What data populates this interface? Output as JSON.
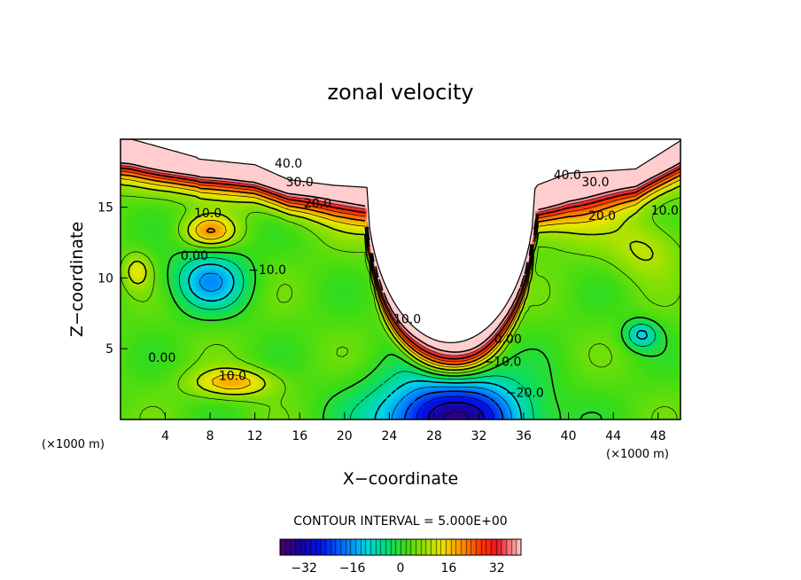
{
  "chart_data": {
    "type": "heatmap",
    "title": "zonal velocity",
    "xlabel": "X−coordinate",
    "ylabel": "Z−coordinate",
    "x_unit": "(×1000 m)",
    "y_unit": "(×1000 m)",
    "xlim": [
      0,
      50
    ],
    "ylim": [
      0,
      19.8
    ],
    "x_ticks": [
      4,
      8,
      12,
      16,
      20,
      24,
      28,
      32,
      36,
      40,
      44,
      48
    ],
    "y_ticks": [
      5,
      10,
      15
    ],
    "contour_interval_text": "CONTOUR INTERVAL = 5.000E+00",
    "contour_interval": 5,
    "colorbar": {
      "range": [
        -40,
        40
      ],
      "ticks": [
        -32,
        -16,
        0,
        16,
        32
      ],
      "tick_labels": [
        "−32",
        "−16",
        "0",
        "16",
        "32"
      ]
    },
    "contour_labels": [
      {
        "text": "40.0",
        "x": 15.0,
        "z": 18.1
      },
      {
        "text": "30.0",
        "x": 16.0,
        "z": 16.8
      },
      {
        "text": "20.0",
        "x": 17.6,
        "z": 15.3
      },
      {
        "text": "10.0",
        "x": 7.8,
        "z": 14.6
      },
      {
        "text": "0.00",
        "x": 6.6,
        "z": 11.6
      },
      {
        "text": "−10.0",
        "x": 13.1,
        "z": 10.6
      },
      {
        "text": "10.0",
        "x": 25.6,
        "z": 7.1
      },
      {
        "text": "0.00",
        "x": 34.6,
        "z": 5.7
      },
      {
        "text": "−10.0",
        "x": 34.1,
        "z": 4.1
      },
      {
        "text": "−20.0",
        "x": 36.1,
        "z": 1.9
      },
      {
        "text": "0.00",
        "x": 3.7,
        "z": 4.4
      },
      {
        "text": "10.0",
        "x": 10.0,
        "z": 3.1
      },
      {
        "text": "40.0",
        "x": 39.9,
        "z": 17.3
      },
      {
        "text": "30.0",
        "x": 42.4,
        "z": 16.8
      },
      {
        "text": "20.0",
        "x": 43.0,
        "z": 14.4
      },
      {
        "text": "10.0",
        "x": 48.6,
        "z": 14.8
      }
    ],
    "features": [
      {
        "type": "jet",
        "value": 42,
        "x": 22,
        "z": 19.5,
        "sx": 30,
        "sz": 2.2
      },
      {
        "type": "jet",
        "value": 30,
        "x": 38,
        "z": 17.0,
        "sx": 6,
        "sz": 3.2
      },
      {
        "type": "jet",
        "value": 20,
        "x": 27,
        "z": 16.0,
        "sx": 6,
        "sz": 3.0
      },
      {
        "type": "max",
        "value": 16,
        "x": 8,
        "z": 13.3,
        "sx": 2.2,
        "sz": 1.1
      },
      {
        "type": "min",
        "value": -18,
        "x": 8,
        "z": 9.8,
        "sx": 3.2,
        "sz": 2.0
      },
      {
        "type": "min",
        "value": -38,
        "x": 29.5,
        "z": 0.0,
        "sx": 6.5,
        "sz": 3.0
      },
      {
        "type": "min",
        "value": -14,
        "x": 46.5,
        "z": 6.0,
        "sx": 1.5,
        "sz": 1.0
      },
      {
        "type": "max",
        "value": 15,
        "x": 10,
        "z": 2.6,
        "sx": 3.5,
        "sz": 1.0
      },
      {
        "type": "max",
        "value": 8,
        "x": 47,
        "z": 12.0,
        "sx": 3.0,
        "sz": 2.0
      },
      {
        "type": "max",
        "value": 10,
        "x": 1.5,
        "z": 10.5,
        "sx": 1.2,
        "sz": 1.2
      }
    ]
  }
}
